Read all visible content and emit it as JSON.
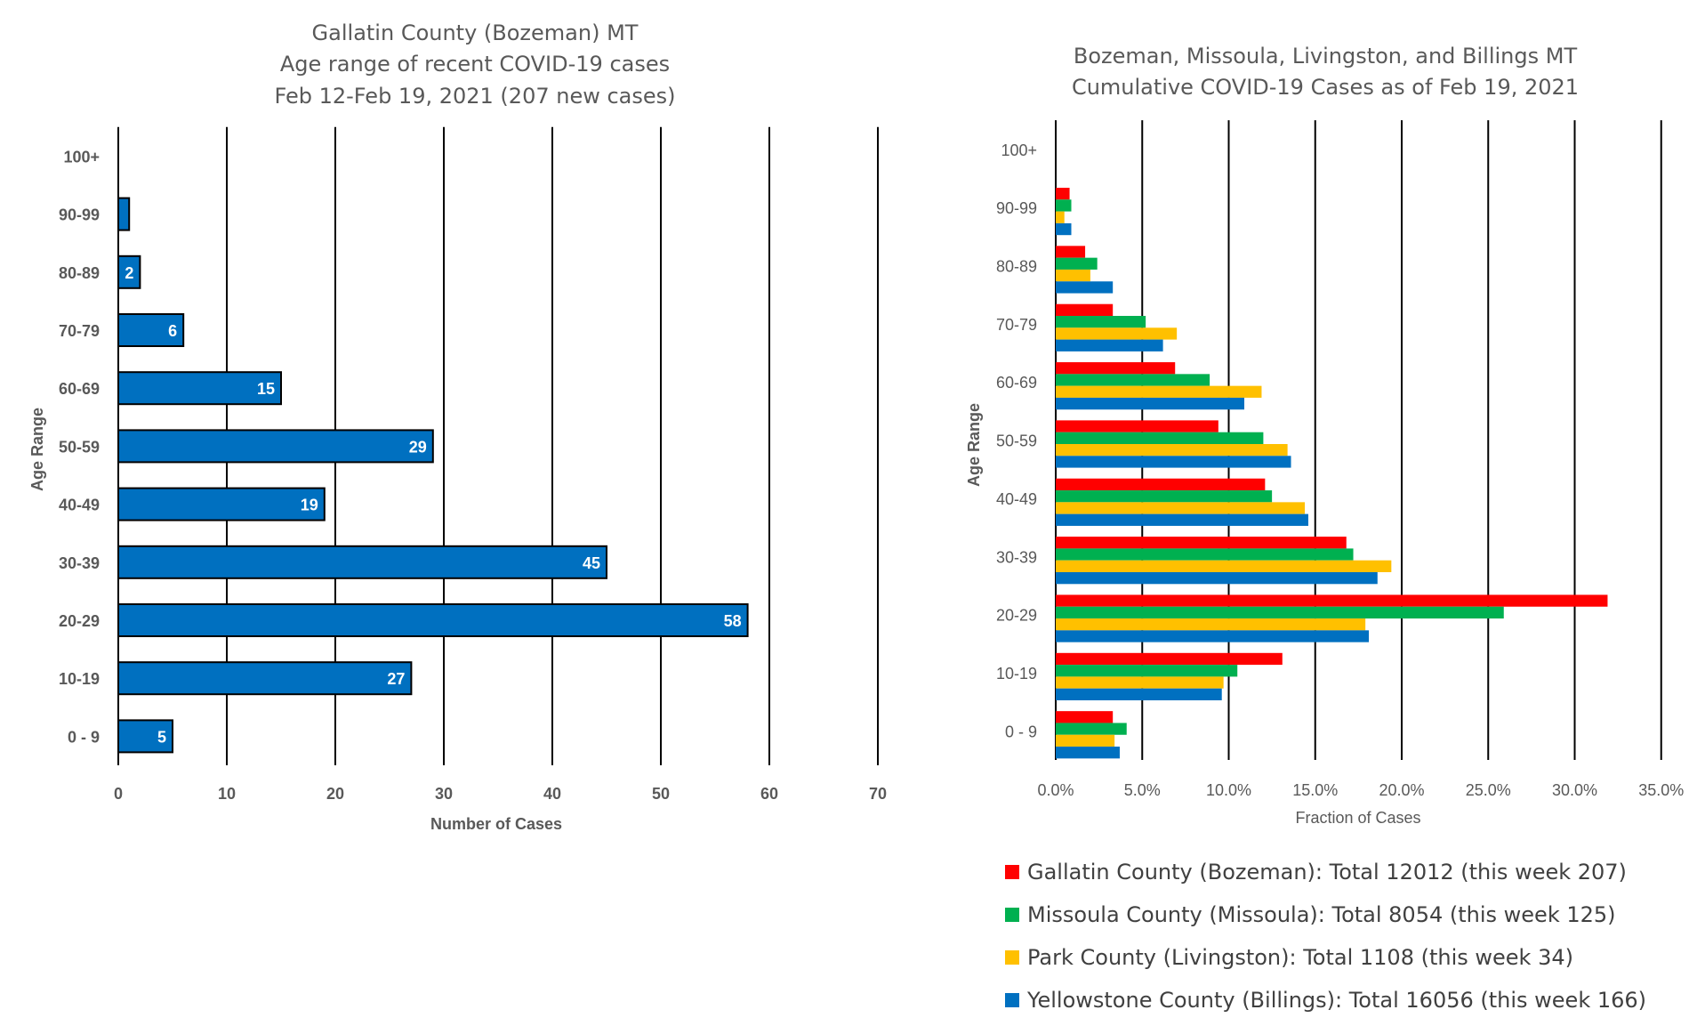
{
  "chart_data": [
    {
      "type": "bar",
      "orientation": "horizontal",
      "title_lines": [
        "Gallatin County (Bozeman) MT",
        "Age range of recent COVID-19 cases",
        "Feb 12-Feb 19, 2021 (207 new cases)"
      ],
      "xlabel": "Number of Cases",
      "ylabel": "Age Range",
      "categories": [
        "0 - 9",
        "10-19",
        "20-29",
        "30-39",
        "40-49",
        "50-59",
        "60-69",
        "70-79",
        "80-89",
        "90-99",
        "100+"
      ],
      "values": [
        5,
        27,
        58,
        45,
        19,
        29,
        15,
        6,
        2,
        1,
        0
      ],
      "data_labels": [
        "5",
        "27",
        "58",
        "45",
        "19",
        "29",
        "15",
        "6",
        "2",
        "",
        ""
      ],
      "xlim": [
        0,
        70
      ],
      "xticks": [
        "0",
        "10",
        "20",
        "30",
        "40",
        "50",
        "60",
        "70"
      ],
      "grid": "vertical",
      "bar_color": "#0070C0"
    },
    {
      "type": "bar",
      "orientation": "horizontal",
      "title_lines": [
        "Bozeman, Missoula, Livingston, and Billings MT",
        "Cumulative COVID-19 Cases as of Feb 19, 2021"
      ],
      "xlabel": "Fraction of Cases",
      "ylabel": "Age Range",
      "categories": [
        "0 - 9",
        "10-19",
        "20-29",
        "30-39",
        "40-49",
        "50-59",
        "60-69",
        "70-79",
        "80-89",
        "90-99",
        "100+"
      ],
      "xlim": [
        0,
        35
      ],
      "xticks": [
        "0.0%",
        "5.0%",
        "10.0%",
        "15.0%",
        "20.0%",
        "25.0%",
        "30.0%",
        "35.0%"
      ],
      "grid": "vertical",
      "legend_position": "bottom",
      "series": [
        {
          "name": "Gallatin County (Bozeman): Total 12012 (this week 207)",
          "color": "#FF0000",
          "values": [
            3.3,
            13.1,
            31.9,
            16.8,
            12.1,
            9.4,
            6.9,
            3.3,
            1.7,
            0.8,
            0
          ]
        },
        {
          "name": "Missoula County (Missoula): Total 8054 (this week 125)",
          "color": "#00B050",
          "values": [
            4.1,
            10.5,
            25.9,
            17.2,
            12.5,
            12.0,
            8.9,
            5.2,
            2.4,
            0.9,
            0
          ]
        },
        {
          "name": "Park County (Livingston): Total 1108 (this week 34)",
          "color": "#FFC000",
          "values": [
            3.4,
            9.7,
            17.9,
            19.4,
            14.4,
            13.4,
            11.9,
            7.0,
            2.0,
            0.5,
            0
          ]
        },
        {
          "name": "Yellowstone County (Billings): Total 16056 (this week 166)",
          "color": "#0070C0",
          "values": [
            3.7,
            9.6,
            18.1,
            18.6,
            14.6,
            13.6,
            10.9,
            6.2,
            3.3,
            0.9,
            0
          ]
        }
      ]
    }
  ]
}
